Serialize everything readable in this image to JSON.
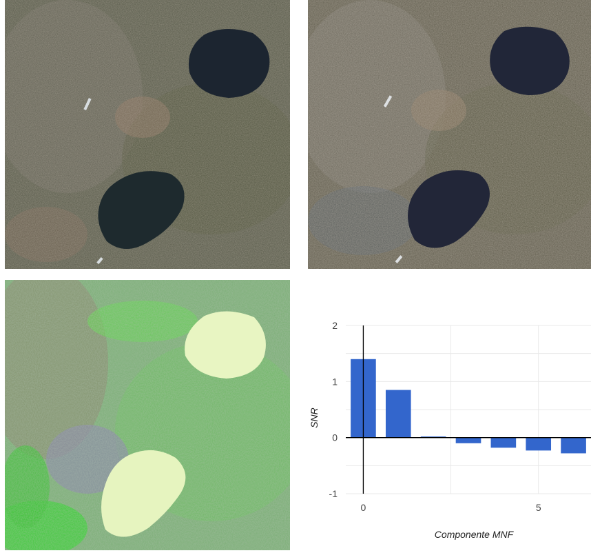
{
  "colors": {
    "bar": "#3366cc",
    "grid": "#e8e8e8",
    "axis": "#000000",
    "lake_dark": "#1a2433",
    "lake_classified": "#e8f5c2",
    "vegetation_green": "#55d444"
  },
  "images": [
    {
      "name": "satellite-true-color-date-1"
    },
    {
      "name": "satellite-true-color-date-2"
    },
    {
      "name": "mnf-false-color-composite"
    }
  ],
  "chart_data": {
    "type": "bar",
    "x": [
      0,
      1,
      2,
      3,
      4,
      5,
      6
    ],
    "values": [
      1.4,
      0.85,
      0.02,
      -0.1,
      -0.18,
      -0.23,
      -0.28
    ],
    "xlabel": "Componente MNF",
    "ylabel": "SNR",
    "xlim": [
      -0.5,
      6.5
    ],
    "ylim": [
      -1,
      2
    ],
    "yticks": [
      2,
      1,
      0,
      -1
    ],
    "xticks": [
      0,
      5
    ],
    "grid": true,
    "legend": "none"
  }
}
